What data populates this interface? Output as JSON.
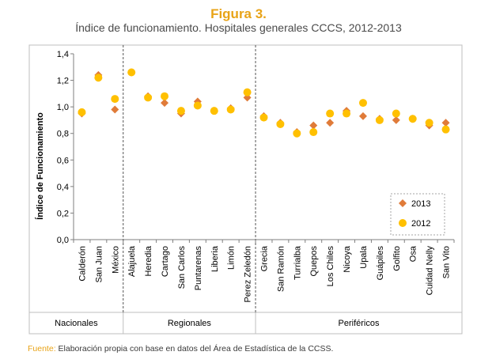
{
  "figure": {
    "title": "Figura 3.",
    "subtitle": "Índice de funcionamiento.  Hospitales generales CCCS, 2012-2013"
  },
  "source": {
    "label": "Fuente:",
    "text": " Elaboración propia con base en datos del Área de Estadística de la CCSS."
  },
  "colors": {
    "s2013": "#e07b39",
    "s2012": "#ffc000",
    "title": "#e8a317"
  },
  "chart_data": {
    "type": "scatter",
    "title": "Figura 3.",
    "subtitle": "Índice de funcionamiento.  Hospitales generales CCCS, 2012-2013",
    "ylabel": "Índice de Funcionamiento",
    "xlabel": "",
    "ylim": [
      0,
      1.4
    ],
    "yticks": [
      "0,0",
      "0,2",
      "0,4",
      "0,6",
      "0,8",
      "1,0",
      "1,2",
      "1,4"
    ],
    "categories": [
      "Calderón",
      "San Juan",
      "México",
      "Alajuela",
      "Heredia",
      "Cartago",
      "San Carlos",
      "Puntarenas",
      "Liberia",
      "Limón",
      "Perez Zeledón",
      "Grecia",
      "San Ramón",
      "Turrialba",
      "Quepos",
      "Los Chiles",
      "Nicoya",
      "Upala",
      "Guápiles",
      "Golfito",
      "Osa",
      "Cuidad Nelly",
      "San Vito"
    ],
    "groups": [
      {
        "label": "Nacionales",
        "count": 3
      },
      {
        "label": "Regionales",
        "count": 8
      },
      {
        "label": "Periféricos",
        "count": 12
      }
    ],
    "series": [
      {
        "name": "2013",
        "marker": "diamond",
        "values": [
          0.95,
          1.24,
          0.98,
          1.26,
          1.08,
          1.03,
          0.95,
          1.04,
          0.97,
          0.99,
          1.07,
          0.93,
          0.88,
          0.81,
          0.86,
          0.88,
          0.97,
          0.93,
          0.91,
          0.9,
          0.91,
          0.86,
          0.88
        ]
      },
      {
        "name": "2012",
        "marker": "circle",
        "values": [
          0.96,
          1.22,
          1.06,
          1.26,
          1.07,
          1.08,
          0.97,
          1.01,
          0.97,
          0.98,
          1.11,
          0.92,
          0.87,
          0.8,
          0.81,
          0.95,
          0.95,
          1.03,
          0.9,
          0.95,
          0.91,
          0.88,
          0.83
        ]
      }
    ],
    "legend_position": "bottom-right",
    "grid": false
  }
}
